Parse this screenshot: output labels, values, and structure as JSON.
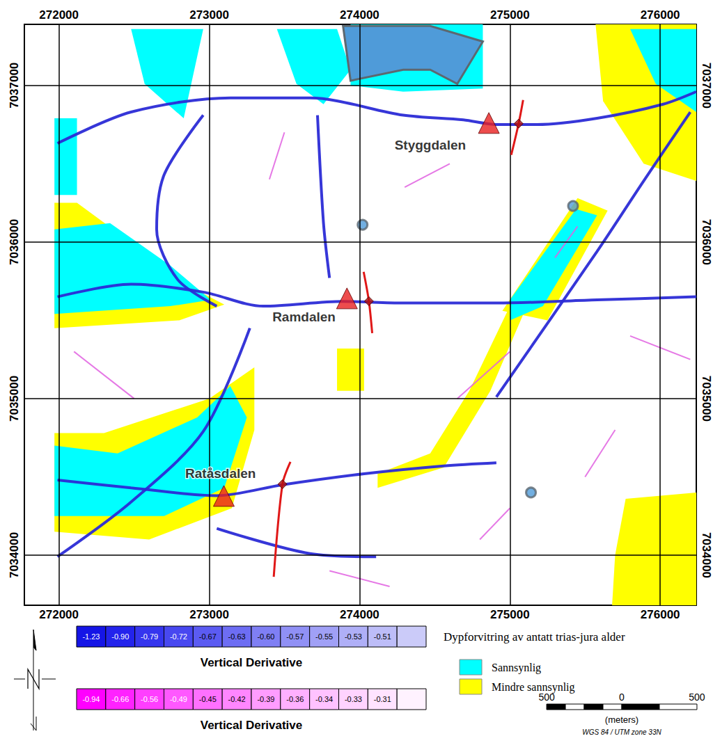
{
  "chart_data": {
    "type": "map",
    "xlim": [
      271770,
      276240
    ],
    "ylim": [
      7033680,
      7037390
    ],
    "xticks": [
      272000,
      273000,
      274000,
      275000,
      276000
    ],
    "yticks": [
      7034000,
      7035000,
      7036000,
      7037000
    ],
    "grid": true,
    "places": [
      {
        "name": "Styggdalen",
        "label_at": [
          274470,
          7036620
        ],
        "site": [
          274860,
          7036760
        ],
        "profile": [
          [
            275088,
            7036907
          ],
          [
            275058,
            7036756
          ],
          [
            275009,
            7036556
          ]
        ],
        "profile_mark": [
          275058,
          7036756
        ]
      },
      {
        "name": "Ramdalen",
        "label_at": [
          273630,
          7035520
        ],
        "site": [
          273916,
          7035640
        ],
        "profile": [
          [
            274027,
            7035809
          ],
          [
            274062,
            7035622
          ],
          [
            274084,
            7035418
          ]
        ],
        "profile_mark": [
          274062,
          7035622
        ]
      },
      {
        "name": "Ratåsdalen",
        "label_at": [
          273075,
          7034520
        ],
        "site": [
          273097,
          7034378
        ],
        "profile": [
          [
            273540,
            7034596
          ],
          [
            273487,
            7034453
          ],
          [
            273429,
            7033862
          ]
        ],
        "profile_mark": [
          273487,
          7034453
        ]
      }
    ],
    "lineaments": [
      {
        "color": "#2b2bd6",
        "lines": [
          [
            [
              271990,
              7036630
            ],
            [
              272480,
              7036830
            ],
            [
              273140,
              7036920
            ],
            [
              273670,
              7036920
            ],
            [
              274290,
              7036810
            ],
            [
              274690,
              7036780
            ],
            [
              274910,
              7036750
            ],
            [
              275180,
              7036750
            ],
            [
              275580,
              7036790
            ],
            [
              276020,
              7036880
            ],
            [
              276240,
              7036960
            ]
          ],
          [
            [
              271990,
              7035650
            ],
            [
              272480,
              7035730
            ],
            [
              272960,
              7035680
            ],
            [
              273360,
              7035590
            ],
            [
              273890,
              7035620
            ],
            [
              274290,
              7035610
            ],
            [
              274910,
              7035610
            ],
            [
              275580,
              7035630
            ],
            [
              276240,
              7035650
            ]
          ],
          [
            [
              271990,
              7034480
            ],
            [
              272480,
              7034430
            ],
            [
              273050,
              7034380
            ],
            [
              273490,
              7034450
            ],
            [
              274030,
              7034520
            ],
            [
              274560,
              7034570
            ],
            [
              274910,
              7034590
            ]
          ],
          [
            [
              273050,
              7034170
            ],
            [
              273670,
              7034010
            ],
            [
              274110,
              7033990
            ]
          ],
          [
            [
              274910,
              7035010
            ],
            [
              275580,
              7035940
            ],
            [
              275890,
              7036390
            ],
            [
              276200,
              7036830
            ]
          ],
          [
            [
              272960,
              7036810
            ],
            [
              272700,
              7036430
            ],
            [
              272650,
              7036080
            ],
            [
              272790,
              7035760
            ],
            [
              273050,
              7035590
            ]
          ],
          [
            [
              273720,
              7036810
            ],
            [
              273760,
              7036120
            ],
            [
              273800,
              7035770
            ]
          ],
          [
            [
              271990,
              7033990
            ],
            [
              272480,
              7034340
            ],
            [
              272960,
              7034790
            ],
            [
              273270,
              7035450
            ]
          ]
        ]
      },
      {
        "color": "#e060e0",
        "lines": [
          [
            [
              274650,
              7035000
            ],
            [
              275000,
              7035300
            ]
          ],
          [
            [
              275500,
              7034500
            ],
            [
              275700,
              7034800
            ]
          ],
          [
            [
              274300,
              7036350
            ],
            [
              274600,
              7036500
            ]
          ],
          [
            [
              275300,
              7035900
            ],
            [
              275450,
              7036100
            ]
          ],
          [
            [
              272100,
              7035300
            ],
            [
              272500,
              7035000
            ]
          ],
          [
            [
              273800,
              7033900
            ],
            [
              274200,
              7033800
            ]
          ],
          [
            [
              275800,
              7035400
            ],
            [
              276200,
              7035250
            ]
          ],
          [
            [
              273400,
              7036400
            ],
            [
              273500,
              7036700
            ]
          ],
          [
            [
              274800,
              7034100
            ],
            [
              275000,
              7034300
            ]
          ]
        ]
      }
    ],
    "weathering": {
      "title": "Dypforvitring av antatt trias-jura alder",
      "classes": [
        {
          "name": "Sannsynlig",
          "color": "#00ffff",
          "polygons": [
            [
              [
                271970,
                7036790
              ],
              [
                272120,
                7036790
              ],
              [
                272120,
                7036300
              ],
              [
                271970,
                7036300
              ]
            ],
            [
              [
                271970,
                7036080
              ],
              [
                272340,
                7036120
              ],
              [
                272740,
                7035850
              ],
              [
                273010,
                7035630
              ],
              [
                272740,
                7035590
              ],
              [
                271970,
                7035540
              ]
            ],
            [
              [
                271970,
                7034700
              ],
              [
                272390,
                7034650
              ],
              [
                272920,
                7034880
              ],
              [
                273140,
                7035080
              ],
              [
                273250,
                7034880
              ],
              [
                273100,
                7034430
              ],
              [
                272700,
                7034250
              ],
              [
                271970,
                7034250
              ]
            ],
            [
              [
                273450,
                7037360
              ],
              [
                273850,
                7037360
              ],
              [
                273940,
                7037100
              ],
              [
                273760,
                7036880
              ],
              [
                273580,
                7037010
              ]
            ],
            [
              [
                275000,
                7035630
              ],
              [
                275440,
                7036210
              ],
              [
                275580,
                7036170
              ],
              [
                275220,
                7035590
              ],
              [
                275000,
                7035500
              ]
            ],
            [
              [
                275800,
                7037360
              ],
              [
                276240,
                7037360
              ],
              [
                276240,
                7036830
              ],
              [
                275970,
                7037010
              ]
            ],
            [
              [
                272480,
                7037360
              ],
              [
                272960,
                7037360
              ],
              [
                272830,
                7036790
              ],
              [
                272570,
                7037010
              ]
            ],
            [
              [
                273940,
                7037390
              ],
              [
                274820,
                7037390
              ],
              [
                274820,
                7036980
              ],
              [
                274290,
                7036960
              ],
              [
                273940,
                7037000
              ]
            ]
          ]
        },
        {
          "name": "Mindre sannsynlig",
          "color": "#ffff00",
          "polygons": [
            [
              [
                274470,
                7034650
              ],
              [
                274730,
                7035050
              ],
              [
                275000,
                7035590
              ],
              [
                275090,
                7035540
              ],
              [
                274870,
                7035050
              ],
              [
                274560,
                7034560
              ],
              [
                274120,
                7034430
              ],
              [
                274120,
                7034520
              ]
            ],
            [
              [
                275770,
                7034360
              ],
              [
                276240,
                7034400
              ],
              [
                276240,
                7033680
              ],
              [
                275680,
                7033680
              ],
              [
                275700,
                7034000
              ]
            ],
            [
              [
                275570,
                7037390
              ],
              [
                276240,
                7037390
              ],
              [
                276240,
                7036390
              ],
              [
                275890,
                7036500
              ],
              [
                275620,
                7036900
              ]
            ],
            [
              [
                271970,
                7036250
              ],
              [
                272120,
                7036250
              ],
              [
                272900,
                7035700
              ],
              [
                273100,
                7035600
              ],
              [
                272800,
                7035500
              ],
              [
                271970,
                7035450
              ]
            ],
            [
              [
                271970,
                7034780
              ],
              [
                272300,
                7034780
              ],
              [
                273000,
                7035000
              ],
              [
                273300,
                7035200
              ],
              [
                273300,
                7034800
              ],
              [
                273150,
                7034300
              ],
              [
                272600,
                7034100
              ],
              [
                271970,
                7034150
              ]
            ],
            [
              [
                274950,
                7035560
              ],
              [
                275450,
                7036280
              ],
              [
                275650,
                7036200
              ],
              [
                275250,
                7035500
              ]
            ],
            [
              [
                273850,
                7035320
              ],
              [
                274030,
                7035320
              ],
              [
                274030,
                7035050
              ],
              [
                273850,
                7035050
              ]
            ]
          ]
        }
      ]
    },
    "lakes": {
      "color": "#4f9bd9",
      "polygons": [
        [
          [
            273890,
            7037380
          ],
          [
            274470,
            7037380
          ],
          [
            274820,
            7037280
          ],
          [
            274650,
            7037010
          ],
          [
            274470,
            7037100
          ],
          [
            274290,
            7037100
          ],
          [
            273940,
            7037030
          ]
        ]
      ],
      "points": [
        [
          274020,
          7036110
        ],
        [
          275420,
          7036230
        ],
        [
          275140,
          7034400
        ]
      ]
    },
    "colorbars": [
      {
        "title": "Vertical Derivative",
        "ticks": [
          -1.23,
          {
            "value": -0.9,
            "label": "-0.90"
          },
          -0.79,
          -0.72,
          -0.67,
          -0.63,
          {
            "value": -0.6,
            "label": "-0.60"
          },
          -0.57,
          -0.55,
          -0.53,
          -0.51
        ],
        "colors": [
          "#1515e6",
          "#2323ec",
          "#3535ee",
          "#4848f0",
          "#5b5bf2",
          "#6d6df3",
          "#7f7ff4",
          "#9090f5",
          "#a0a0f6",
          "#afaff7",
          "#bdbdf8",
          "#cbcbf9"
        ]
      },
      {
        "title": "Vertical Derivative",
        "ticks": [
          -0.94,
          -0.66,
          -0.56,
          -0.49,
          -0.45,
          -0.42,
          -0.39,
          -0.36,
          -0.34,
          -0.33,
          -0.31
        ],
        "colors": [
          "#ff00ff",
          "#ff22ff",
          "#ff3eff",
          "#ff58ff",
          "#ff70ff",
          "#ff86ff",
          "#ff9cff",
          "#ffb0ff",
          "#ffc2ff",
          "#ffd3ff",
          "#ffe3ff",
          "#fff2ff"
        ]
      }
    ],
    "scale_bar": {
      "ticks": [
        {
          "value": -500,
          "label": "500"
        },
        0,
        500
      ],
      "unit": "(meters)"
    },
    "projection": "WGS 84 / UTM zone 33N"
  }
}
